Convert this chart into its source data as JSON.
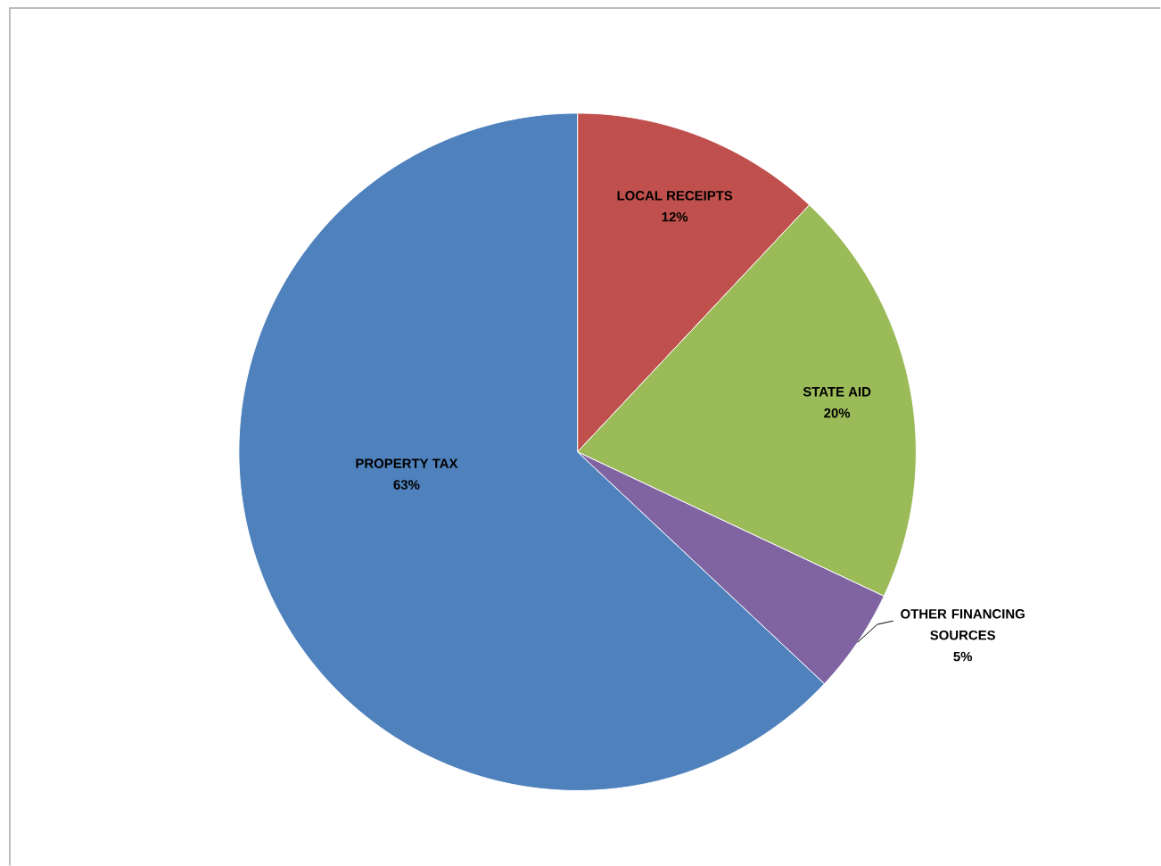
{
  "chart_data": {
    "type": "pie",
    "categories": [
      "LOCAL RECEIPTS",
      "STATE AID",
      "OTHER FINANCING SOURCES",
      "PROPERTY TAX"
    ],
    "values": [
      12,
      20,
      5,
      63
    ],
    "value_labels": [
      "12%",
      "20%",
      "5%",
      "63%"
    ],
    "colors": [
      "#c0504d",
      "#9bbb59",
      "#8064a2",
      "#4f81bd"
    ]
  }
}
